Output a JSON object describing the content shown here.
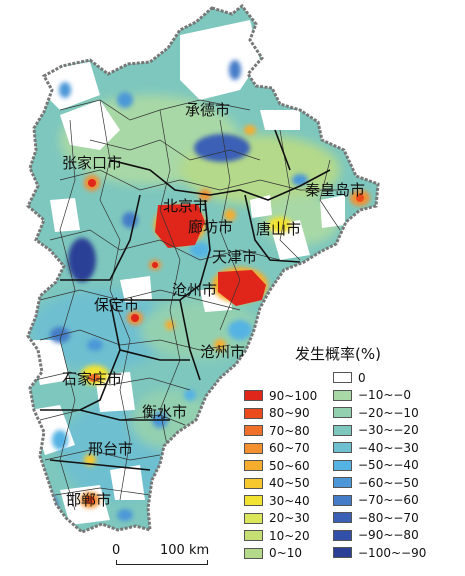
{
  "cities": [
    {
      "name": "承德市",
      "key": "chengde"
    },
    {
      "name": "张家口市",
      "key": "zhangjiakou"
    },
    {
      "name": "秦皇岛市",
      "key": "qinhuangdao"
    },
    {
      "name": "北京市",
      "key": "beijing"
    },
    {
      "name": "廊坊市",
      "key": "langfang"
    },
    {
      "name": "唐山市",
      "key": "tangshan"
    },
    {
      "name": "天津市",
      "key": "tianjin"
    },
    {
      "name": "保定市",
      "key": "baoding"
    },
    {
      "name": "沧州市",
      "key": "cangzhou"
    },
    {
      "name": "石家庄市",
      "key": "shijiazhuang"
    },
    {
      "name": "衡水市",
      "key": "hengshui"
    },
    {
      "name": "邢台市",
      "key": "xingtai"
    },
    {
      "name": "邯郸市",
      "key": "handan"
    }
  ],
  "legend": {
    "title": "发生概率(%)",
    "positive": [
      {
        "label": "90~100",
        "color": "#e0261a"
      },
      {
        "label": "80~90",
        "color": "#ea4a1c"
      },
      {
        "label": "70~80",
        "color": "#f0702a"
      },
      {
        "label": "60~70",
        "color": "#f39030"
      },
      {
        "label": "50~60",
        "color": "#f6ad2e"
      },
      {
        "label": "40~50",
        "color": "#f7c82e"
      },
      {
        "label": "30~40",
        "color": "#f2e232"
      },
      {
        "label": "20~30",
        "color": "#dce65a"
      },
      {
        "label": "10~20",
        "color": "#c6df72"
      },
      {
        "label": "0~10",
        "color": "#b4d98a"
      }
    ],
    "negative": [
      {
        "label": "0",
        "color": "#ffffff"
      },
      {
        "label": "−10~−0",
        "color": "#a8d8a6"
      },
      {
        "label": "−20~−10",
        "color": "#93d0b0"
      },
      {
        "label": "−30~−20",
        "color": "#7ec7be"
      },
      {
        "label": "−40~−30",
        "color": "#6ebfd0"
      },
      {
        "label": "−50~−40",
        "color": "#55b3e4"
      },
      {
        "label": "−60~−50",
        "color": "#4b97d8"
      },
      {
        "label": "−70~−60",
        "color": "#447cc8"
      },
      {
        "label": "−80~−70",
        "color": "#3b61b6"
      },
      {
        "label": "−90~−80",
        "color": "#3350a8"
      },
      {
        "label": "−100~−90",
        "color": "#2a3f96"
      }
    ]
  },
  "scale": {
    "start": "0",
    "end": "100 km"
  }
}
